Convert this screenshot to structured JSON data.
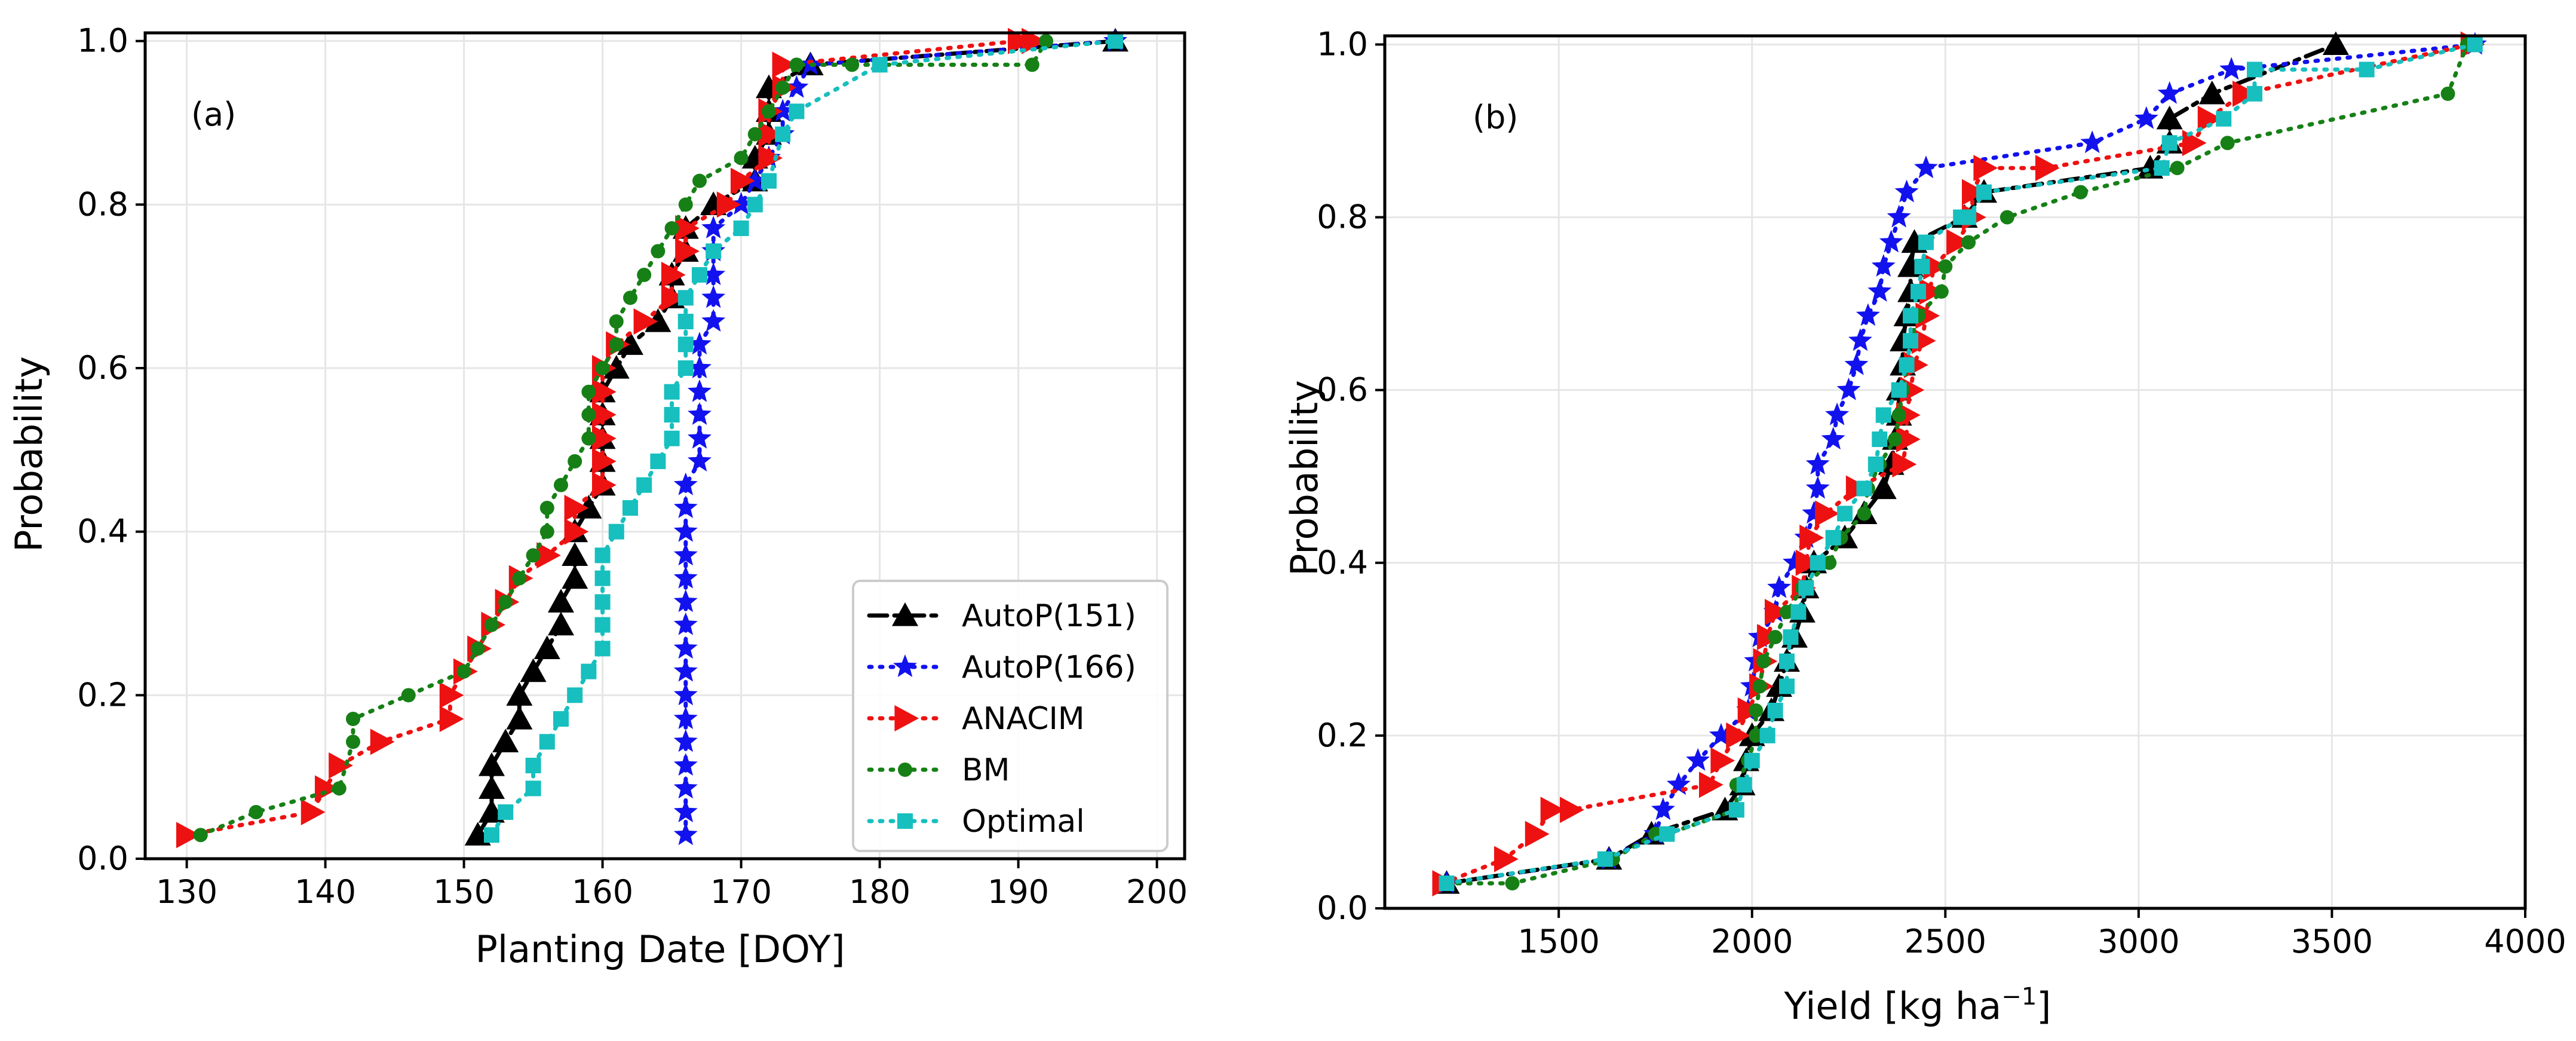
{
  "chart_data": [
    {
      "type": "line",
      "panel_label": "(a)",
      "xlabel": "Planting Date [DOY]",
      "ylabel": "Probability",
      "xlim": [
        127,
        202
      ],
      "ylim": [
        0,
        1.01
      ],
      "xticks": [
        130,
        140,
        150,
        160,
        170,
        180,
        190,
        200
      ],
      "yticks": [
        0.0,
        0.2,
        0.4,
        0.6,
        0.8,
        1.0
      ],
      "ytick_labels": [
        "0.0",
        "0.2",
        "0.4",
        "0.6",
        "0.8",
        "1.0"
      ],
      "grid": true,
      "legend_position": "bottom-right",
      "series": [
        {
          "name": "AutoP(151)",
          "color": "#000000",
          "dash": "30,12,8,12",
          "marker": "triangle-up",
          "x": [
            151,
            152,
            152,
            152,
            153,
            154,
            154,
            155,
            156,
            157,
            157,
            158,
            158,
            158,
            159,
            160,
            160,
            160,
            160,
            160,
            161,
            162,
            164,
            165,
            165,
            166,
            166,
            168,
            171,
            171,
            172,
            172,
            172,
            175,
            197
          ],
          "y": [
            0.029,
            0.057,
            0.086,
            0.114,
            0.143,
            0.171,
            0.2,
            0.229,
            0.257,
            0.286,
            0.314,
            0.343,
            0.371,
            0.4,
            0.429,
            0.457,
            0.486,
            0.514,
            0.543,
            0.571,
            0.6,
            0.629,
            0.657,
            0.686,
            0.714,
            0.743,
            0.771,
            0.8,
            0.829,
            0.857,
            0.886,
            0.914,
            0.943,
            0.971,
            1.0
          ]
        },
        {
          "name": "AutoP(166)",
          "color": "#1212ee",
          "dash": "4,14",
          "marker": "star",
          "x": [
            166,
            166,
            166,
            166,
            166,
            166,
            166,
            166,
            166,
            166,
            166,
            166,
            166,
            166,
            166,
            166,
            167,
            167,
            167,
            167,
            167,
            167,
            168,
            168,
            168,
            168,
            168,
            170,
            171,
            172,
            173,
            173,
            174,
            175,
            197
          ],
          "y": [
            0.029,
            0.057,
            0.086,
            0.114,
            0.143,
            0.171,
            0.2,
            0.229,
            0.257,
            0.286,
            0.314,
            0.343,
            0.371,
            0.4,
            0.429,
            0.457,
            0.486,
            0.514,
            0.543,
            0.571,
            0.6,
            0.629,
            0.657,
            0.686,
            0.714,
            0.743,
            0.771,
            0.8,
            0.829,
            0.857,
            0.886,
            0.914,
            0.943,
            0.971,
            1.0
          ]
        },
        {
          "name": "ANACIM",
          "color": "#ee1111",
          "dash": "4,14",
          "marker": "triangle-right",
          "x": [
            130,
            139,
            140,
            141,
            144,
            149,
            149,
            150,
            151,
            152,
            153,
            154,
            156,
            158,
            158,
            160,
            160,
            160,
            160,
            160,
            160,
            161,
            163,
            165,
            165,
            166,
            166,
            169,
            170,
            172,
            172,
            172,
            173,
            173,
            190,
            191
          ],
          "y": [
            0.029,
            0.057,
            0.086,
            0.114,
            0.143,
            0.171,
            0.2,
            0.229,
            0.257,
            0.286,
            0.314,
            0.343,
            0.371,
            0.4,
            0.429,
            0.457,
            0.486,
            0.514,
            0.543,
            0.571,
            0.6,
            0.629,
            0.657,
            0.686,
            0.714,
            0.743,
            0.771,
            0.8,
            0.829,
            0.857,
            0.886,
            0.914,
            0.943,
            0.971,
            1.0,
            1.0
          ]
        },
        {
          "name": "BM",
          "color": "#168016",
          "dash": "4,14",
          "marker": "circle",
          "x": [
            131,
            135,
            141,
            142,
            142,
            146,
            150,
            151,
            152,
            153,
            154,
            155,
            156,
            156,
            157,
            158,
            159,
            159,
            159,
            160,
            160,
            161,
            161,
            162,
            163,
            164,
            165,
            166,
            167,
            170,
            171,
            172,
            173,
            174,
            178,
            191,
            192
          ],
          "y": [
            0.029,
            0.057,
            0.086,
            0.143,
            0.171,
            0.2,
            0.229,
            0.257,
            0.286,
            0.314,
            0.343,
            0.371,
            0.4,
            0.429,
            0.457,
            0.486,
            0.514,
            0.543,
            0.571,
            0.6,
            0.6,
            0.629,
            0.657,
            0.686,
            0.714,
            0.743,
            0.771,
            0.8,
            0.829,
            0.857,
            0.886,
            0.914,
            0.943,
            0.971,
            0.971,
            0.971,
            1.0
          ]
        },
        {
          "name": "Optimal",
          "color": "#17bfbf",
          "dash": "4,14",
          "marker": "square",
          "x": [
            152,
            153,
            155,
            155,
            156,
            157,
            158,
            159,
            160,
            160,
            160,
            160,
            160,
            161,
            162,
            163,
            164,
            165,
            165,
            165,
            166,
            166,
            166,
            166,
            167,
            168,
            170,
            171,
            172,
            173,
            174,
            180,
            197
          ],
          "y": [
            0.029,
            0.057,
            0.086,
            0.114,
            0.143,
            0.171,
            0.2,
            0.229,
            0.257,
            0.286,
            0.314,
            0.343,
            0.371,
            0.4,
            0.429,
            0.457,
            0.486,
            0.514,
            0.543,
            0.571,
            0.6,
            0.629,
            0.657,
            0.686,
            0.714,
            0.743,
            0.771,
            0.8,
            0.829,
            0.886,
            0.914,
            0.971,
            1.0
          ]
        }
      ]
    },
    {
      "type": "line",
      "panel_label": "(b)",
      "xlabel": "Yield [kg ha",
      "xlabel_sup": "−1",
      "xlabel_end": "]",
      "ylabel": "Probability",
      "xlim": [
        1050,
        4000
      ],
      "ylim": [
        0,
        1.01
      ],
      "xticks": [
        1500,
        2000,
        2500,
        3000,
        3500,
        4000
      ],
      "yticks": [
        0.0,
        0.2,
        0.4,
        0.6,
        0.8,
        1.0
      ],
      "ytick_labels": [
        "0.0",
        "0.2",
        "0.4",
        "0.6",
        "0.8",
        "1.0"
      ],
      "grid": true,
      "series": [
        {
          "name": "AutoP(151)",
          "color": "#000000",
          "dash": "30,12,8,12",
          "marker": "triangle-up",
          "x": [
            1210,
            1630,
            1740,
            1930,
            1975,
            1985,
            2000,
            2050,
            2070,
            2090,
            2110,
            2130,
            2140,
            2160,
            2240,
            2290,
            2340,
            2360,
            2370,
            2380,
            2380,
            2390,
            2390,
            2400,
            2410,
            2410,
            2420,
            2550,
            2600,
            3030,
            3080,
            3080,
            3190,
            3510
          ],
          "y": [
            0.029,
            0.057,
            0.086,
            0.114,
            0.143,
            0.171,
            0.2,
            0.229,
            0.257,
            0.286,
            0.314,
            0.343,
            0.371,
            0.4,
            0.429,
            0.457,
            0.486,
            0.514,
            0.543,
            0.571,
            0.6,
            0.629,
            0.657,
            0.686,
            0.714,
            0.743,
            0.771,
            0.8,
            0.829,
            0.857,
            0.886,
            0.914,
            0.943,
            1.0
          ]
        },
        {
          "name": "AutoP(166)",
          "color": "#1212ee",
          "dash": "4,14",
          "marker": "star",
          "x": [
            1210,
            1630,
            1750,
            1770,
            1810,
            1860,
            1920,
            1990,
            2000,
            2010,
            2020,
            2060,
            2070,
            2110,
            2140,
            2160,
            2170,
            2170,
            2210,
            2220,
            2250,
            2270,
            2280,
            2300,
            2330,
            2340,
            2360,
            2380,
            2400,
            2450,
            2880,
            3020,
            3080,
            3240,
            3870
          ],
          "y": [
            0.029,
            0.057,
            0.086,
            0.114,
            0.143,
            0.171,
            0.2,
            0.229,
            0.257,
            0.286,
            0.314,
            0.343,
            0.371,
            0.4,
            0.429,
            0.457,
            0.486,
            0.514,
            0.543,
            0.571,
            0.6,
            0.629,
            0.657,
            0.686,
            0.714,
            0.743,
            0.771,
            0.8,
            0.829,
            0.857,
            0.886,
            0.914,
            0.943,
            0.971,
            1.0
          ]
        },
        {
          "name": "ANACIM",
          "color": "#ee1111",
          "dash": "4,14",
          "marker": "triangle-right",
          "x": [
            1200,
            1360,
            1440,
            1480,
            1530,
            1890,
            1920,
            1960,
            1990,
            2020,
            2030,
            2040,
            2060,
            2130,
            2140,
            2150,
            2190,
            2270,
            2390,
            2400,
            2400,
            2410,
            2420,
            2440,
            2450,
            2460,
            2470,
            2530,
            2570,
            2570,
            2600,
            2760,
            3140,
            3180,
            3270,
            3860
          ],
          "y": [
            0.029,
            0.057,
            0.086,
            0.114,
            0.114,
            0.143,
            0.171,
            0.2,
            0.229,
            0.257,
            0.286,
            0.314,
            0.343,
            0.371,
            0.4,
            0.429,
            0.457,
            0.486,
            0.514,
            0.543,
            0.571,
            0.6,
            0.629,
            0.657,
            0.686,
            0.714,
            0.743,
            0.771,
            0.8,
            0.829,
            0.857,
            0.857,
            0.886,
            0.914,
            0.943,
            1.0
          ]
        },
        {
          "name": "BM",
          "color": "#168016",
          "dash": "4,14",
          "marker": "circle",
          "x": [
            1210,
            1380,
            1640,
            1750,
            1780,
            1960,
            1960,
            1990,
            2010,
            2010,
            2020,
            2030,
            2060,
            2090,
            2130,
            2200,
            2230,
            2290,
            2300,
            2330,
            2370,
            2380,
            2390,
            2400,
            2410,
            2430,
            2490,
            2500,
            2560,
            2660,
            2850,
            3100,
            3230,
            3800,
            3850
          ],
          "y": [
            0.029,
            0.029,
            0.057,
            0.086,
            0.086,
            0.114,
            0.143,
            0.171,
            0.2,
            0.229,
            0.257,
            0.286,
            0.314,
            0.343,
            0.371,
            0.4,
            0.429,
            0.457,
            0.486,
            0.514,
            0.543,
            0.571,
            0.6,
            0.629,
            0.657,
            0.686,
            0.714,
            0.743,
            0.771,
            0.8,
            0.829,
            0.857,
            0.886,
            0.943,
            1.0
          ]
        },
        {
          "name": "Optimal",
          "color": "#17bfbf",
          "dash": "4,14",
          "marker": "square",
          "x": [
            1210,
            1620,
            1780,
            1960,
            1980,
            2000,
            2040,
            2060,
            2090,
            2090,
            2100,
            2120,
            2140,
            2170,
            2210,
            2240,
            2290,
            2320,
            2330,
            2340,
            2380,
            2400,
            2410,
            2410,
            2430,
            2440,
            2450,
            2540,
            2560,
            2600,
            3060,
            3080,
            3220,
            3300,
            3300,
            3590,
            3870
          ],
          "y": [
            0.029,
            0.057,
            0.086,
            0.114,
            0.143,
            0.171,
            0.2,
            0.229,
            0.257,
            0.286,
            0.314,
            0.343,
            0.371,
            0.4,
            0.429,
            0.457,
            0.486,
            0.514,
            0.543,
            0.571,
            0.6,
            0.629,
            0.657,
            0.686,
            0.714,
            0.743,
            0.771,
            0.8,
            0.8,
            0.829,
            0.857,
            0.886,
            0.914,
            0.943,
            0.971,
            0.971,
            1.0
          ]
        }
      ]
    }
  ]
}
